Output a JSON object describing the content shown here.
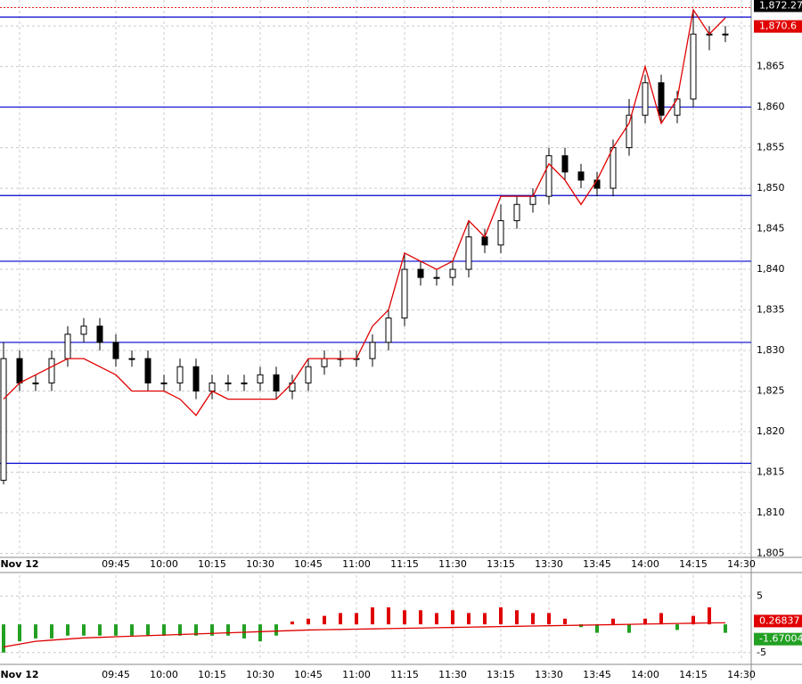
{
  "chart_data": [
    {
      "type": "candlestick",
      "categories": [
        null,
        "Nov 12",
        null,
        null,
        null,
        null,
        null,
        "09:45",
        null,
        null,
        "10:00",
        null,
        null,
        "10:15",
        null,
        null,
        "10:30",
        null,
        null,
        "10:45",
        null,
        null,
        "11:00",
        null,
        null,
        "11:15",
        null,
        null,
        "11:30",
        null,
        null,
        "13:15",
        null,
        null,
        "13:30",
        null,
        null,
        "13:45",
        null,
        null,
        "14:00",
        null,
        null,
        "14:15",
        null,
        null,
        "14:30"
      ],
      "open": [
        1814,
        1829,
        1826,
        1826,
        1829,
        1832,
        1833,
        1831,
        1829,
        1829,
        1826,
        1826,
        1828,
        1825,
        1826,
        1826,
        1826,
        1827,
        1825,
        1826,
        1828,
        1829,
        1829,
        1829,
        1831,
        1834,
        1840,
        1839,
        1839,
        1840,
        1844,
        1843,
        1846,
        1848,
        1849,
        1854,
        1852,
        1851,
        1850,
        1855,
        1859,
        1863,
        1859,
        1861,
        1869,
        1869,
        null
      ],
      "high": [
        1831,
        1830,
        1827,
        1830,
        1833,
        1834,
        1834,
        1832,
        1830,
        1830,
        1827,
        1829,
        1829,
        1827,
        1827,
        1827,
        1828,
        1828,
        1827,
        1829,
        1830,
        1830,
        1830,
        1832,
        1835,
        1842,
        1841,
        1840,
        1841,
        1846,
        1845,
        1848,
        1849,
        1850,
        1855,
        1855,
        1853,
        1852,
        1856,
        1861,
        1864,
        1864,
        1862,
        1872,
        1870,
        1870,
        null
      ],
      "low": [
        1813.5,
        1825,
        1825,
        1825,
        1828,
        1831,
        1830,
        1828,
        1828,
        1825,
        1825,
        1825,
        1824,
        1824,
        1825,
        1825,
        1825,
        1824,
        1824,
        1825,
        1827,
        1828,
        1828,
        1828,
        1830,
        1833,
        1838,
        1838,
        1838,
        1839,
        1842,
        1842,
        1845,
        1847,
        1848,
        1851,
        1850,
        1849,
        1849,
        1854,
        1858,
        1858,
        1858,
        1860,
        1867,
        1868,
        null
      ],
      "close": [
        1829,
        1826,
        1826,
        1829,
        1832,
        1833,
        1831,
        1829,
        1829,
        1826,
        1826,
        1828,
        1825,
        1826,
        1826,
        1826,
        1827,
        1825,
        1826,
        1828,
        1829,
        1829,
        1829,
        1831,
        1834,
        1840,
        1839,
        1839,
        1840,
        1844,
        1843,
        1846,
        1848,
        1849,
        1854,
        1852,
        1851,
        1850,
        1855,
        1859,
        1863,
        1859,
        1861,
        1869,
        1869,
        1869,
        null
      ],
      "up_color": "#ffffff",
      "down_color": "#000000",
      "line": {
        "color": "#e00000",
        "values": [
          1824,
          1826,
          1827,
          1828,
          1829,
          1829,
          1828,
          1827,
          1825,
          1825,
          1825,
          1824,
          1822,
          1825,
          1824,
          1824,
          1824,
          1824,
          1826,
          1829,
          1829,
          1829,
          1829,
          1833,
          1835,
          1842,
          1841,
          1840,
          1841,
          1846,
          1844,
          1849,
          1849,
          1849,
          1853,
          1851,
          1848,
          1851,
          1855,
          1858,
          1865,
          1858,
          1861,
          1872,
          1869,
          1871,
          null
        ]
      },
      "levels": {
        "color": "#0000cc",
        "values": [
          1871.1,
          1860,
          1849.1,
          1841,
          1831,
          1816.1
        ]
      },
      "markers": [
        {
          "value": 1872.27,
          "label": "1,872.27",
          "color": "#000000"
        },
        {
          "value": 1870.6,
          "label": "1,870.6",
          "color": "#e00000"
        }
      ],
      "ylim": [
        1804.5,
        1873.2
      ],
      "yticks": [
        {
          "value": 1805,
          "label": "1,805"
        },
        {
          "value": 1810,
          "label": "1,810"
        },
        {
          "value": 1815,
          "label": "1,815"
        },
        {
          "value": 1820,
          "label": "1,820"
        },
        {
          "value": 1825,
          "label": "1,825"
        },
        {
          "value": 1830,
          "label": "1,830"
        },
        {
          "value": 1835,
          "label": "1,835"
        },
        {
          "value": 1840,
          "label": "1,840"
        },
        {
          "value": 1845,
          "label": "1,845"
        },
        {
          "value": 1850,
          "label": "1,850"
        },
        {
          "value": 1855,
          "label": "1,855"
        },
        {
          "value": 1860,
          "label": "1,860"
        },
        {
          "value": 1865,
          "label": "1,865"
        },
        {
          "value": 1870,
          "label": "1,870"
        }
      ],
      "grid": true
    },
    {
      "type": "bar",
      "categories": [
        null,
        "Nov 12",
        null,
        null,
        null,
        null,
        null,
        "09:45",
        null,
        null,
        "10:00",
        null,
        null,
        "10:15",
        null,
        null,
        "10:30",
        null,
        null,
        "10:45",
        null,
        null,
        "11:00",
        null,
        null,
        "11:15",
        null,
        null,
        "11:30",
        null,
        null,
        "13:15",
        null,
        null,
        "13:30",
        null,
        null,
        "13:45",
        null,
        null,
        "14:00",
        null,
        null,
        "14:15",
        null,
        null,
        "14:30"
      ],
      "values": [
        -5,
        -3,
        -2.5,
        -2.5,
        -2,
        -2,
        -2,
        -2,
        -2,
        -2,
        -2,
        -2,
        -2,
        -2,
        -2,
        -2.5,
        -3,
        -2,
        0.5,
        1,
        1.5,
        2,
        2,
        3,
        3,
        2.5,
        2.5,
        2,
        2.5,
        2,
        2,
        3,
        2.5,
        2,
        2,
        1,
        -0.5,
        -1.5,
        1,
        -1.5,
        1,
        2,
        -1,
        1.5,
        3,
        -1.5,
        null
      ],
      "up_color": "#e00000",
      "down_color": "#22a022",
      "line": {
        "color": "#e00000",
        "values": [
          -4,
          -3.5,
          -3,
          -2.8,
          -2.6,
          -2.4,
          -2.3,
          -2.2,
          -2.1,
          -2,
          -1.9,
          -1.8,
          -1.7,
          -1.6,
          -1.5,
          -1.4,
          -1.3,
          -1.2,
          -1.1,
          -1,
          -0.95,
          -0.9,
          -0.85,
          -0.8,
          -0.75,
          -0.7,
          -0.65,
          -0.6,
          -0.55,
          -0.5,
          -0.45,
          -0.4,
          -0.35,
          -0.3,
          -0.25,
          -0.2,
          -0.15,
          -0.1,
          -0.05,
          0,
          0.05,
          0.1,
          0.15,
          0.2,
          0.25,
          0.27,
          null
        ]
      },
      "markers": [
        {
          "value": 0.26837,
          "label": "0.26837",
          "color": "#e00000"
        },
        {
          "value": -1.67004,
          "label": "-1.67004",
          "color": "#22a022"
        }
      ],
      "ylim": [
        -6.3,
        8.7
      ],
      "yticks": [
        5,
        -5
      ],
      "grid": true
    }
  ]
}
